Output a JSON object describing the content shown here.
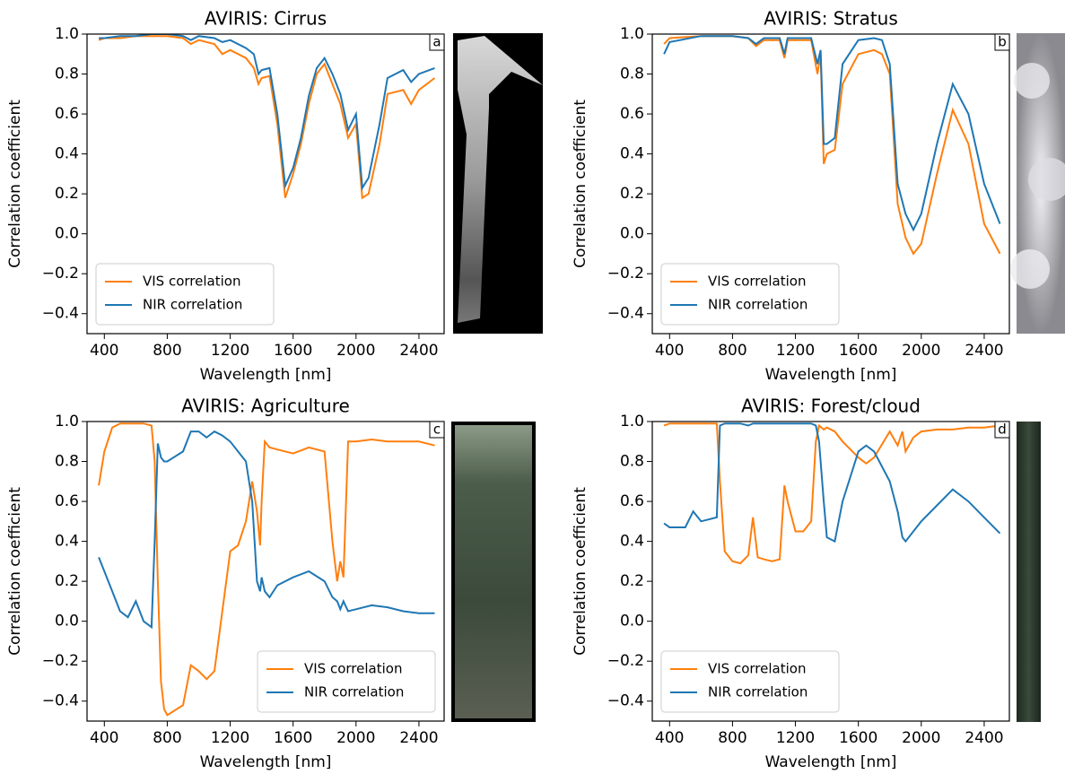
{
  "chart_data": [
    {
      "type": "line",
      "title": "AVIRIS: Cirrus",
      "panel_label": "a",
      "xlabel": "Wavelength [nm]",
      "ylabel": "Correlation coefficient",
      "x": [
        365,
        400,
        500,
        600,
        700,
        800,
        900,
        950,
        1000,
        1100,
        1150,
        1200,
        1300,
        1350,
        1380,
        1400,
        1450,
        1500,
        1550,
        1600,
        1650,
        1700,
        1750,
        1800,
        1850,
        1900,
        1950,
        2000,
        2040,
        2080,
        2150,
        2200,
        2300,
        2350,
        2400,
        2500
      ],
      "series": [
        {
          "name": "VIS correlation",
          "color": "#ff7f0e",
          "values": [
            0.97,
            0.98,
            0.98,
            0.99,
            0.99,
            0.99,
            0.98,
            0.95,
            0.97,
            0.95,
            0.9,
            0.92,
            0.88,
            0.83,
            0.75,
            0.78,
            0.79,
            0.55,
            0.18,
            0.3,
            0.45,
            0.65,
            0.8,
            0.85,
            0.75,
            0.65,
            0.48,
            0.55,
            0.18,
            0.2,
            0.45,
            0.7,
            0.72,
            0.65,
            0.72,
            0.78
          ]
        },
        {
          "name": "NIR correlation",
          "color": "#1f77b4",
          "values": [
            0.98,
            0.98,
            0.99,
            0.99,
            1.0,
            1.0,
            0.99,
            0.97,
            0.99,
            0.98,
            0.96,
            0.97,
            0.93,
            0.9,
            0.8,
            0.82,
            0.83,
            0.6,
            0.24,
            0.33,
            0.48,
            0.69,
            0.83,
            0.88,
            0.8,
            0.7,
            0.52,
            0.6,
            0.23,
            0.28,
            0.55,
            0.78,
            0.82,
            0.76,
            0.8,
            0.83
          ]
        }
      ],
      "xlim": [
        290,
        2560
      ],
      "ylim": [
        -0.5,
        1.0
      ],
      "xticks": [
        400,
        800,
        1200,
        1600,
        2000,
        2400
      ],
      "yticks": [
        {
          "value": -0.4,
          "label": "−0.4"
        },
        {
          "value": -0.2,
          "label": "−0.2"
        },
        {
          "value": 0,
          "label": "0.0"
        },
        0.2,
        0.4,
        0.6,
        0.8,
        {
          "value": 1,
          "label": "1.0"
        }
      ],
      "legend": "lower left"
    },
    {
      "type": "line",
      "title": "AVIRIS: Stratus",
      "panel_label": "b",
      "xlabel": "Wavelength [nm]",
      "ylabel": "Correlation coefficient",
      "x": [
        365,
        400,
        600,
        800,
        900,
        950,
        1000,
        1100,
        1130,
        1150,
        1200,
        1300,
        1340,
        1360,
        1380,
        1400,
        1450,
        1500,
        1600,
        1700,
        1750,
        1800,
        1850,
        1900,
        1950,
        2000,
        2100,
        2200,
        2300,
        2400,
        2500
      ],
      "series": [
        {
          "name": "VIS correlation",
          "color": "#ff7f0e",
          "values": [
            0.95,
            0.98,
            0.99,
            0.99,
            0.98,
            0.94,
            0.97,
            0.97,
            0.88,
            0.97,
            0.97,
            0.97,
            0.8,
            0.9,
            0.35,
            0.4,
            0.42,
            0.75,
            0.9,
            0.92,
            0.9,
            0.8,
            0.15,
            -0.02,
            -0.1,
            -0.05,
            0.3,
            0.62,
            0.45,
            0.05,
            -0.1
          ]
        },
        {
          "name": "NIR correlation",
          "color": "#1f77b4",
          "values": [
            0.9,
            0.96,
            0.99,
            0.99,
            0.98,
            0.95,
            0.98,
            0.98,
            0.9,
            0.98,
            0.98,
            0.98,
            0.85,
            0.92,
            0.45,
            0.45,
            0.48,
            0.85,
            0.97,
            0.98,
            0.97,
            0.85,
            0.25,
            0.1,
            0.02,
            0.1,
            0.45,
            0.75,
            0.6,
            0.25,
            0.05
          ]
        }
      ],
      "xlim": [
        290,
        2560
      ],
      "ylim": [
        -0.5,
        1.0
      ],
      "xticks": [
        400,
        800,
        1200,
        1600,
        2000,
        2400
      ],
      "yticks": [
        {
          "value": -0.4,
          "label": "−0.4"
        },
        {
          "value": -0.2,
          "label": "−0.2"
        },
        {
          "value": 0,
          "label": "0.0"
        },
        0.2,
        0.4,
        0.6,
        0.8,
        {
          "value": 1,
          "label": "1.0"
        }
      ],
      "legend": "lower left"
    },
    {
      "type": "line",
      "title": "AVIRIS: Agriculture",
      "panel_label": "c",
      "xlabel": "Wavelength [nm]",
      "ylabel": "Correlation coefficient",
      "x": [
        365,
        400,
        450,
        500,
        550,
        600,
        650,
        700,
        720,
        740,
        760,
        780,
        800,
        900,
        950,
        1000,
        1050,
        1100,
        1150,
        1200,
        1250,
        1300,
        1340,
        1370,
        1390,
        1400,
        1420,
        1450,
        1500,
        1600,
        1700,
        1800,
        1850,
        1880,
        1900,
        1920,
        1950,
        2000,
        2100,
        2200,
        2300,
        2400,
        2500
      ],
      "series": [
        {
          "name": "VIS correlation",
          "color": "#ff7f0e",
          "values": [
            0.68,
            0.85,
            0.97,
            0.99,
            0.99,
            0.99,
            0.99,
            0.98,
            0.8,
            0.2,
            -0.3,
            -0.44,
            -0.47,
            -0.42,
            -0.22,
            -0.25,
            -0.29,
            -0.25,
            0.05,
            0.35,
            0.38,
            0.5,
            0.7,
            0.55,
            0.38,
            0.6,
            0.9,
            0.87,
            0.86,
            0.84,
            0.87,
            0.85,
            0.4,
            0.2,
            0.3,
            0.22,
            0.9,
            0.9,
            0.91,
            0.9,
            0.9,
            0.9,
            0.88
          ]
        },
        {
          "name": "NIR correlation",
          "color": "#1f77b4",
          "values": [
            0.32,
            0.25,
            0.15,
            0.05,
            0.02,
            0.1,
            0.0,
            -0.03,
            0.4,
            0.89,
            0.82,
            0.8,
            0.8,
            0.85,
            0.95,
            0.95,
            0.92,
            0.95,
            0.93,
            0.9,
            0.85,
            0.8,
            0.6,
            0.2,
            0.15,
            0.22,
            0.15,
            0.12,
            0.18,
            0.22,
            0.25,
            0.2,
            0.12,
            0.1,
            0.06,
            0.1,
            0.05,
            0.06,
            0.08,
            0.07,
            0.05,
            0.04,
            0.04
          ]
        }
      ],
      "xlim": [
        290,
        2560
      ],
      "ylim": [
        -0.5,
        1.0
      ],
      "xticks": [
        400,
        800,
        1200,
        1600,
        2000,
        2400
      ],
      "yticks": [
        {
          "value": -0.4,
          "label": "−0.4"
        },
        {
          "value": -0.2,
          "label": "−0.2"
        },
        {
          "value": 0,
          "label": "0.0"
        },
        0.2,
        0.4,
        0.6,
        0.8,
        {
          "value": 1,
          "label": "1.0"
        }
      ],
      "legend": "lower right"
    },
    {
      "type": "line",
      "title": "AVIRIS: Forest/cloud",
      "panel_label": "d",
      "xlabel": "Wavelength [nm]",
      "ylabel": "Correlation coefficient",
      "x": [
        365,
        400,
        500,
        550,
        600,
        700,
        720,
        750,
        800,
        850,
        900,
        930,
        960,
        1000,
        1050,
        1100,
        1130,
        1150,
        1200,
        1250,
        1300,
        1330,
        1350,
        1380,
        1400,
        1450,
        1500,
        1600,
        1650,
        1700,
        1800,
        1850,
        1880,
        1900,
        1950,
        2000,
        2100,
        2200,
        2300,
        2400,
        2500
      ],
      "series": [
        {
          "name": "VIS correlation",
          "color": "#ff7f0e",
          "values": [
            0.98,
            0.99,
            0.99,
            0.99,
            0.99,
            0.99,
            0.7,
            0.35,
            0.3,
            0.29,
            0.33,
            0.52,
            0.32,
            0.31,
            0.3,
            0.31,
            0.68,
            0.6,
            0.45,
            0.45,
            0.5,
            0.9,
            0.98,
            0.96,
            0.97,
            0.95,
            0.9,
            0.82,
            0.79,
            0.82,
            0.95,
            0.88,
            0.95,
            0.85,
            0.92,
            0.95,
            0.96,
            0.96,
            0.97,
            0.97,
            0.98
          ]
        },
        {
          "name": "NIR correlation",
          "color": "#1f77b4",
          "values": [
            0.49,
            0.47,
            0.47,
            0.55,
            0.5,
            0.52,
            0.98,
            0.99,
            0.99,
            0.99,
            0.98,
            0.99,
            0.99,
            0.99,
            0.99,
            0.99,
            0.99,
            0.99,
            0.99,
            0.99,
            0.99,
            0.98,
            0.9,
            0.6,
            0.42,
            0.4,
            0.6,
            0.85,
            0.88,
            0.85,
            0.7,
            0.55,
            0.42,
            0.4,
            0.45,
            0.5,
            0.58,
            0.66,
            0.6,
            0.52,
            0.44
          ]
        }
      ],
      "xlim": [
        290,
        2560
      ],
      "ylim": [
        -0.5,
        1.0
      ],
      "xticks": [
        400,
        800,
        1200,
        1600,
        2000,
        2400
      ],
      "yticks": [
        {
          "value": -0.4,
          "label": "−0.4"
        },
        {
          "value": -0.2,
          "label": "−0.2"
        },
        {
          "value": 0,
          "label": "0.0"
        },
        0.2,
        0.4,
        0.6,
        0.8,
        {
          "value": 1,
          "label": "1.0"
        }
      ],
      "legend": "lower left"
    }
  ]
}
